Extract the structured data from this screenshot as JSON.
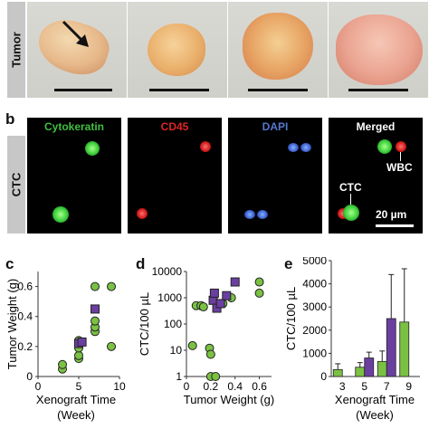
{
  "panel_letters": {
    "b": "b",
    "c": "c",
    "d": "d",
    "e": "e"
  },
  "row_a": {
    "label": "Tumor"
  },
  "row_b": {
    "label": "CTC",
    "headers": [
      "Cytokeratin",
      "CD45",
      "DAPI",
      "Merged"
    ],
    "header_colors": [
      "#3fbf3f",
      "#e02424",
      "#5577cc",
      "#ffffff"
    ],
    "annotations": {
      "wbc": "WBC",
      "ctc": "CTC"
    },
    "scale": "20 µm"
  },
  "colors": {
    "green": "#7ac143",
    "purple": "#6b3fa0",
    "tile_bg": "#000000",
    "label_bg": "#c7c7c7"
  },
  "chart_data": [
    {
      "type": "scatter",
      "xlabel": "Xenograft Time",
      "xlabel2": "(Week)",
      "ylabel": "Tumor Weight (g)",
      "xlim": [
        0,
        10
      ],
      "ylim": [
        0,
        0.7
      ],
      "xticks": [
        0,
        5,
        10
      ],
      "yticks": [
        0,
        0.2,
        0.4,
        0.6
      ],
      "series": [
        {
          "marker": "circle",
          "color": "#7ac143",
          "points": [
            [
              3,
              0.05
            ],
            [
              3,
              0.08
            ],
            [
              5,
              0.12
            ],
            [
              5,
              0.14
            ],
            [
              5,
              0.19
            ],
            [
              5,
              0.24
            ],
            [
              7,
              0.3
            ],
            [
              7,
              0.33
            ],
            [
              7,
              0.37
            ],
            [
              7,
              0.6
            ],
            [
              9,
              0.6
            ],
            [
              9,
              0.2
            ]
          ]
        },
        {
          "marker": "square",
          "color": "#6b3fa0",
          "points": [
            [
              5,
              0.22
            ],
            [
              5.4,
              0.23
            ],
            [
              7,
              0.45
            ]
          ]
        }
      ]
    },
    {
      "type": "scatter",
      "xlabel": "Tumor Weight (g)",
      "ylabel": "CTC/100 µL",
      "yscale": "log",
      "xlim": [
        0,
        0.7
      ],
      "ylim": [
        1,
        10000
      ],
      "xticks": [
        0,
        0.2,
        0.4,
        0.6
      ],
      "yticks": [
        1,
        10,
        100,
        1000,
        10000
      ],
      "ytick_labels": [
        "1",
        "10",
        "100",
        "1000",
        "10000"
      ],
      "series": [
        {
          "marker": "circle",
          "color": "#7ac143",
          "points": [
            [
              0.05,
              15
            ],
            [
              0.08,
              500
            ],
            [
              0.12,
              500
            ],
            [
              0.14,
              450
            ],
            [
              0.19,
              12
            ],
            [
              0.2,
              7
            ],
            [
              0.2,
              1
            ],
            [
              0.24,
              1
            ],
            [
              0.3,
              600
            ],
            [
              0.37,
              1000
            ],
            [
              0.6,
              4000
            ],
            [
              0.6,
              1500
            ]
          ]
        },
        {
          "marker": "square",
          "color": "#6b3fa0",
          "points": [
            [
              0.22,
              800
            ],
            [
              0.23,
              1500
            ],
            [
              0.25,
              400
            ],
            [
              0.28,
              600
            ],
            [
              0.33,
              1200
            ],
            [
              0.4,
              4000
            ]
          ]
        }
      ]
    },
    {
      "type": "bar",
      "xlabel": "Xenograft Time",
      "xlabel2": "(Week)",
      "ylabel": "CTC/100 µL",
      "categories": [
        "3",
        "5",
        "7",
        "9"
      ],
      "ylim": [
        0,
        5000
      ],
      "yticks": [
        0,
        1000,
        2000,
        3000,
        4000,
        5000
      ],
      "series": [
        {
          "color": "#7ac143",
          "values": [
            300,
            400,
            650,
            2350
          ],
          "errors": [
            250,
            200,
            450,
            2300
          ]
        },
        {
          "color": "#6b3fa0",
          "values": [
            null,
            800,
            2500,
            null
          ],
          "errors": [
            null,
            250,
            1900,
            null
          ]
        }
      ]
    }
  ]
}
